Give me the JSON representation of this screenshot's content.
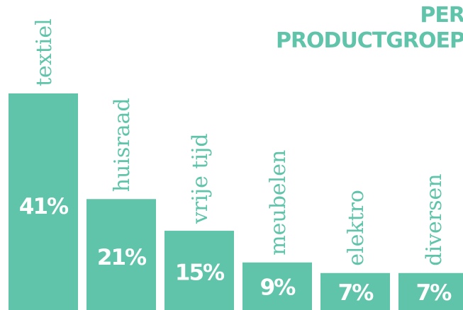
{
  "chart_data": {
    "type": "bar",
    "title_lines": [
      "PER",
      "PRODUCTGROEP"
    ],
    "categories": [
      "textiel",
      "huisraad",
      "vrije tijd",
      "meubelen",
      "elektro",
      "diversen"
    ],
    "values": [
      41,
      21,
      15,
      9,
      7,
      7
    ],
    "value_labels": [
      "41%",
      "21%",
      "15%",
      "9%",
      "7%",
      "7%"
    ],
    "ylim": [
      0,
      41
    ],
    "color": "#5fc4aa",
    "label_color": "#ffffff"
  }
}
